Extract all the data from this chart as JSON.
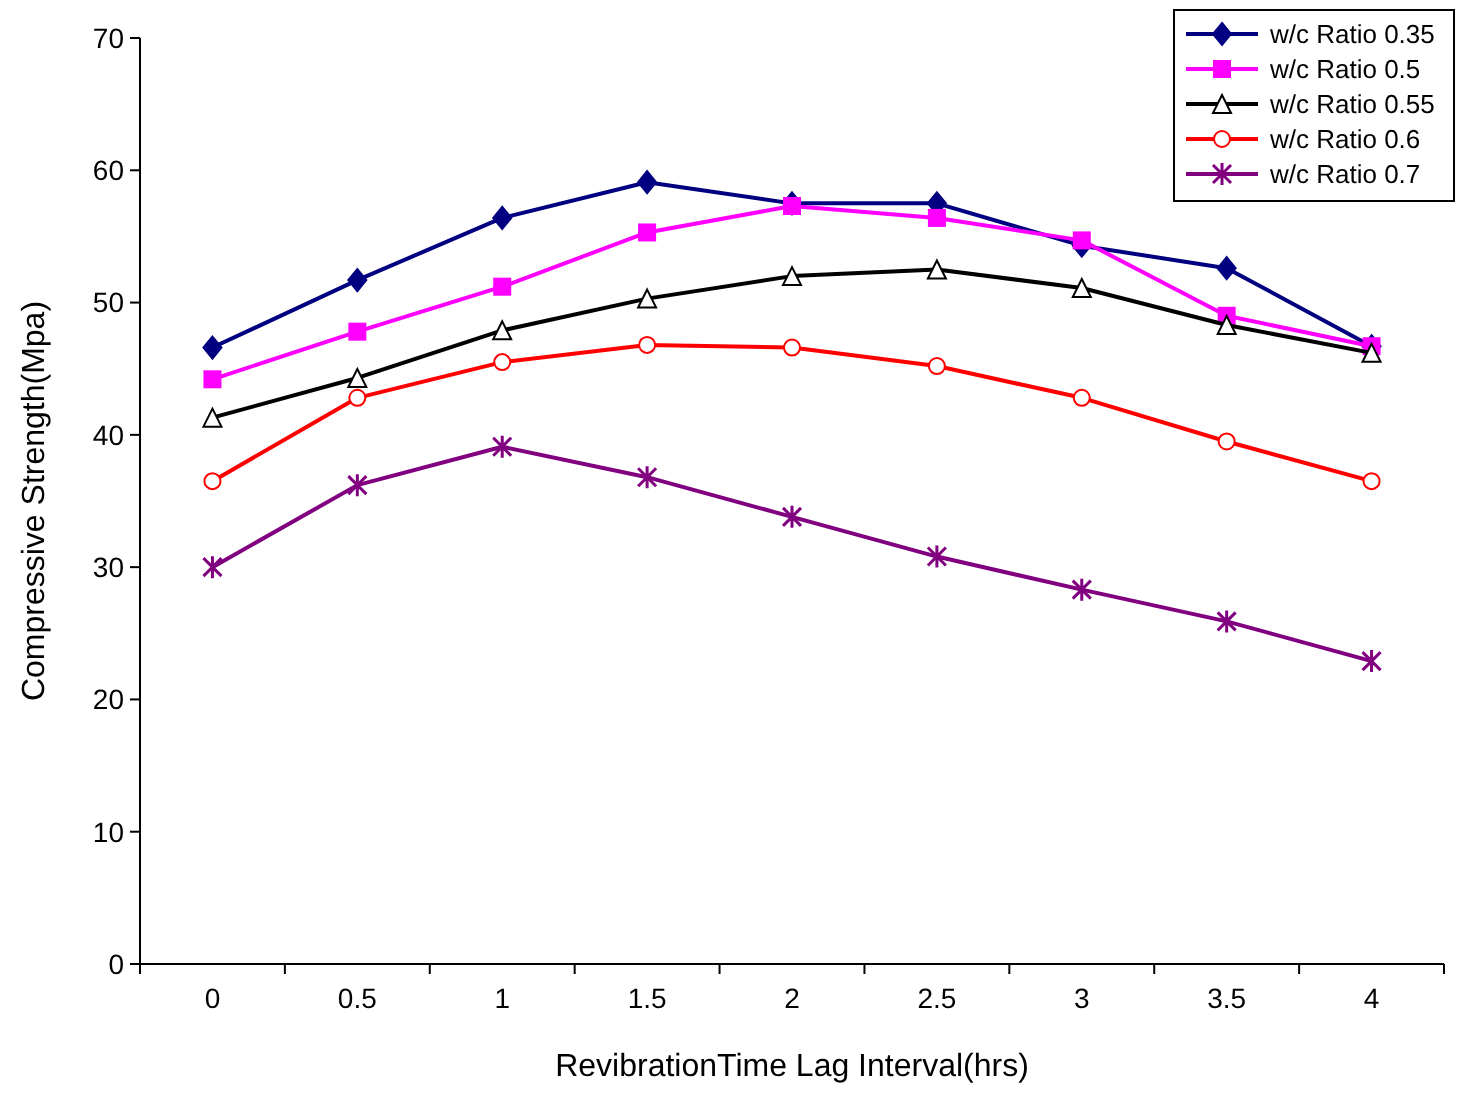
{
  "chart_data": {
    "type": "line",
    "xlabel": "RevibrationTime Lag Interval(hrs)",
    "ylabel": "Compressive Strength(Mpa)",
    "categories": [
      "0",
      "0.5",
      "1",
      "1.5",
      "2",
      "2.5",
      "3",
      "3.5",
      "4"
    ],
    "ylim": [
      0,
      70
    ],
    "yticks": [
      0,
      10,
      20,
      30,
      40,
      50,
      60,
      70
    ],
    "grid": false,
    "legend": "top right",
    "series": [
      {
        "name": "w/c Ratio 0.35",
        "color": "#000080",
        "marker": "diamond",
        "values": [
          46.6,
          51.7,
          56.4,
          59.1,
          57.5,
          57.5,
          54.3,
          52.6,
          46.7
        ]
      },
      {
        "name": "w/c Ratio 0.5",
        "color": "#ff00ff",
        "marker": "square",
        "values": [
          44.2,
          47.8,
          51.2,
          55.3,
          57.3,
          56.4,
          54.7,
          49.0,
          46.7
        ]
      },
      {
        "name": "w/c Ratio 0.55",
        "color": "#000000",
        "marker": "triangle",
        "values": [
          41.3,
          44.3,
          47.9,
          50.3,
          52.0,
          52.5,
          51.1,
          48.3,
          46.2
        ]
      },
      {
        "name": "w/c Ratio 0.6",
        "color": "#ff0000",
        "marker": "circle",
        "values": [
          36.5,
          42.8,
          45.5,
          46.8,
          46.6,
          45.2,
          42.8,
          39.5,
          36.5
        ]
      },
      {
        "name": "w/c Ratio 0.7",
        "color": "#800080",
        "marker": "cross",
        "values": [
          30.0,
          36.2,
          39.1,
          36.8,
          33.8,
          30.8,
          28.3,
          25.9,
          22.9
        ]
      }
    ]
  }
}
